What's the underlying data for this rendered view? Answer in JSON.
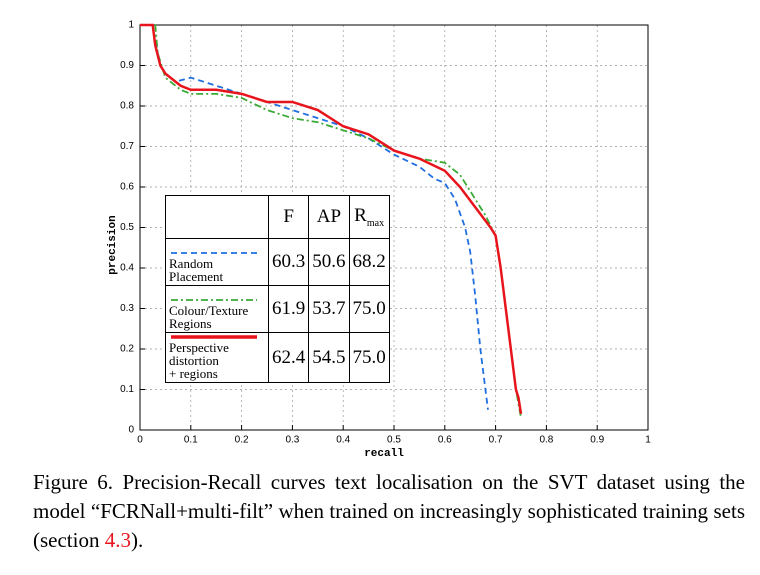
{
  "chart_data": {
    "type": "line",
    "xlabel": "recall",
    "ylabel": "precision",
    "xlim": [
      0,
      1
    ],
    "ylim": [
      0,
      1
    ],
    "xticks": [
      0,
      0.1,
      0.2,
      0.3,
      0.4,
      0.5,
      0.6,
      0.7,
      0.8,
      0.9,
      1
    ],
    "yticks": [
      0,
      0.1,
      0.2,
      0.3,
      0.4,
      0.5,
      0.6,
      0.7,
      0.8,
      0.9,
      1
    ],
    "grid": true,
    "series": [
      {
        "name": [
          "Random",
          "Placement"
        ],
        "color": "#1f6fe0",
        "dash": "6,4",
        "x": [
          0,
          0.025,
          0.03,
          0.04,
          0.05,
          0.07,
          0.1,
          0.15,
          0.2,
          0.25,
          0.3,
          0.35,
          0.4,
          0.45,
          0.5,
          0.55,
          0.58,
          0.6,
          0.62,
          0.64,
          0.65,
          0.66,
          0.67,
          0.68,
          0.685
        ],
        "values": [
          1,
          1,
          0.96,
          0.9,
          0.88,
          0.86,
          0.87,
          0.85,
          0.83,
          0.81,
          0.79,
          0.77,
          0.75,
          0.72,
          0.68,
          0.65,
          0.62,
          0.61,
          0.57,
          0.5,
          0.44,
          0.33,
          0.2,
          0.1,
          0.05
        ],
        "scores": [
          "60.3",
          "50.6",
          "68.2"
        ]
      },
      {
        "name": [
          "Colour/Texture",
          "Regions"
        ],
        "color": "#3aaa35",
        "dash": "7,3,2,3",
        "x": [
          0,
          0.03,
          0.035,
          0.05,
          0.08,
          0.1,
          0.15,
          0.2,
          0.25,
          0.3,
          0.35,
          0.4,
          0.45,
          0.5,
          0.55,
          0.6,
          0.63,
          0.66,
          0.68,
          0.7,
          0.71,
          0.72,
          0.73,
          0.74,
          0.75
        ],
        "values": [
          1,
          1,
          0.93,
          0.87,
          0.84,
          0.83,
          0.83,
          0.82,
          0.79,
          0.77,
          0.76,
          0.74,
          0.72,
          0.69,
          0.67,
          0.66,
          0.63,
          0.57,
          0.53,
          0.48,
          0.4,
          0.3,
          0.2,
          0.1,
          0.03
        ],
        "scores": [
          "61.9",
          "53.7",
          "75.0"
        ]
      },
      {
        "name": [
          "Perspective",
          "distortion",
          "+ regions"
        ],
        "color": "#e8141c",
        "dash": "",
        "x": [
          0,
          0.025,
          0.03,
          0.04,
          0.05,
          0.08,
          0.1,
          0.15,
          0.2,
          0.25,
          0.3,
          0.35,
          0.4,
          0.45,
          0.5,
          0.55,
          0.6,
          0.63,
          0.66,
          0.69,
          0.7,
          0.71,
          0.72,
          0.73,
          0.74,
          0.745,
          0.75
        ],
        "values": [
          1,
          1,
          0.95,
          0.9,
          0.88,
          0.85,
          0.84,
          0.84,
          0.83,
          0.81,
          0.81,
          0.79,
          0.75,
          0.73,
          0.69,
          0.67,
          0.64,
          0.6,
          0.55,
          0.5,
          0.48,
          0.4,
          0.3,
          0.2,
          0.1,
          0.08,
          0.04
        ],
        "scores": [
          "62.4",
          "54.5",
          "75.0"
        ]
      }
    ],
    "legend_columns": [
      "F",
      "AP",
      "R"
    ],
    "legend_subscript": "max"
  },
  "caption": {
    "before": "Figure 6. Precision-Recall curves text localisation on the SVT dataset using the model “FCRNall+multi-filt” when trained on increasingly sophisticated training sets (section ",
    "link": "4.3",
    "after": ")."
  }
}
